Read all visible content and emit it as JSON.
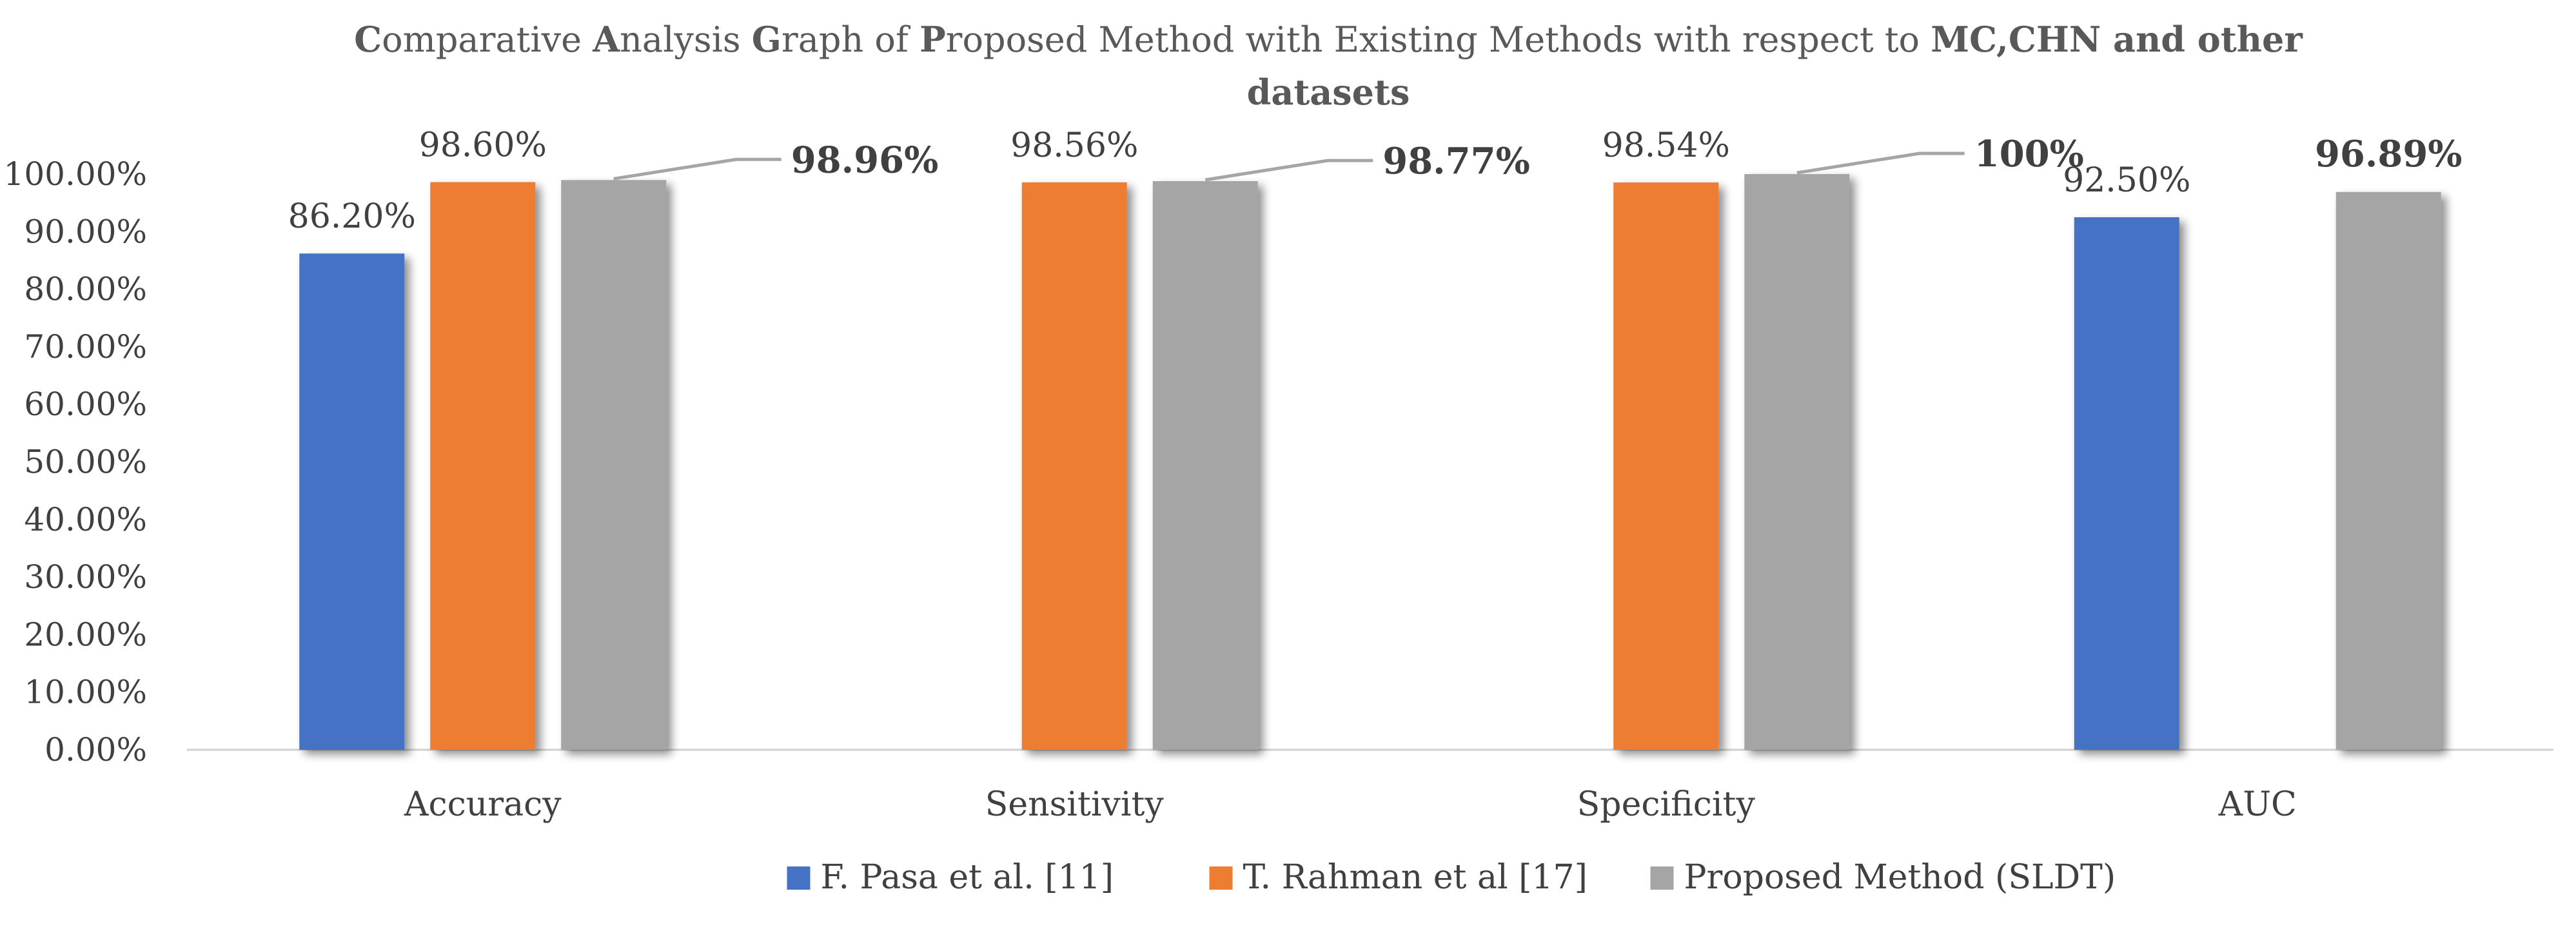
{
  "chart_data": {
    "type": "bar",
    "title_line1_runs": [
      {
        "text": "C",
        "bold": true
      },
      {
        "text": "omparative ",
        "bold": false
      },
      {
        "text": "A",
        "bold": true
      },
      {
        "text": "nalysis ",
        "bold": false
      },
      {
        "text": "G",
        "bold": true
      },
      {
        "text": "raph of ",
        "bold": false
      },
      {
        "text": "P",
        "bold": true
      },
      {
        "text": "roposed Method with Existing Methods with respect to ",
        "bold": false
      },
      {
        "text": "MC,CHN and other",
        "bold": true
      }
    ],
    "title_line2": "datasets",
    "categories": [
      "Accuracy",
      "Sensitivity",
      "Specificity",
      "AUC"
    ],
    "ylim": [
      0,
      1.0
    ],
    "yticks": [
      0,
      0.1,
      0.2,
      0.3,
      0.4,
      0.5,
      0.6,
      0.7,
      0.8,
      0.9,
      1.0
    ],
    "ytick_labels": [
      "0.00%",
      "10.00%",
      "20.00%",
      "30.00%",
      "40.00%",
      "50.00%",
      "60.00%",
      "70.00%",
      "80.00%",
      "90.00%",
      "100.00%"
    ],
    "series": [
      {
        "name": "F. Pasa et al. [11]",
        "color": "#4472C4",
        "values": [
          0.862,
          null,
          null,
          0.925
        ],
        "labels": [
          "86.20%",
          null,
          null,
          "92.50%"
        ],
        "label_bold": false
      },
      {
        "name": "T. Rahman et al [17]",
        "color": "#ED7D31",
        "values": [
          0.986,
          0.9856,
          0.9854,
          null
        ],
        "labels": [
          "98.60%",
          "98.56%",
          "98.54%",
          null
        ],
        "label_bold": false
      },
      {
        "name": "Proposed Method (SLDT)",
        "color": "#A5A5A5",
        "values": [
          0.9896,
          0.9877,
          1.0,
          0.9689
        ],
        "labels": [
          "98.96%",
          "98.77%",
          "100%",
          "96.89%"
        ],
        "label_bold": true,
        "label_callout": [
          true,
          true,
          true,
          false
        ]
      }
    ],
    "legend_position": "bottom",
    "grid": false
  }
}
